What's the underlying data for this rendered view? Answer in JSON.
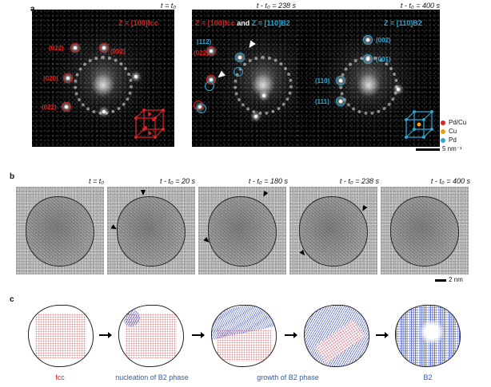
{
  "panel_a": {
    "label": "a",
    "subpanels": [
      {
        "time": "t = t₀",
        "zone_axis": "Z = [100]fcc",
        "indices": [
          "(022)",
          "(002)",
          "(020)",
          "(022)"
        ]
      },
      {
        "time": "t - t₀ = 238 s",
        "zone_axis_fcc": "Z = [100]fcc",
        "zone_axis_and": " and ",
        "zone_axis_b2": "Z = [110]B2",
        "indices": [
          "(112)",
          "(022)"
        ]
      },
      {
        "time": "t - t₀ = 400 s",
        "zone_axis": "Z = [110]B2",
        "indices": [
          "(002)",
          "(001)",
          "(110)",
          "(111)"
        ]
      }
    ],
    "legend": [
      {
        "label": "Pd/Cu",
        "color": "#e02020"
      },
      {
        "label": "Cu",
        "color": "#f39c12"
      },
      {
        "label": "Pd",
        "color": "#2aa7d4"
      }
    ],
    "scale_bar": "5 nm⁻¹"
  },
  "panel_b": {
    "label": "b",
    "times": [
      "t = t₀",
      "t - t₀ = 20 s",
      "t - t₀ = 180 s",
      "t - t₀ = 238 s",
      "t - t₀ = 400 s"
    ],
    "scale_bar": "2 nm"
  },
  "panel_c": {
    "label": "c",
    "captions": [
      {
        "text": "fcc",
        "color": "#e02020"
      },
      {
        "text": "nucleation of B2 phase",
        "color": "#2a5db0"
      },
      {
        "text": "growth of B2 phase",
        "color": "#2a5db0"
      },
      {
        "text": "B2",
        "color": "#2a5db0"
      }
    ]
  }
}
